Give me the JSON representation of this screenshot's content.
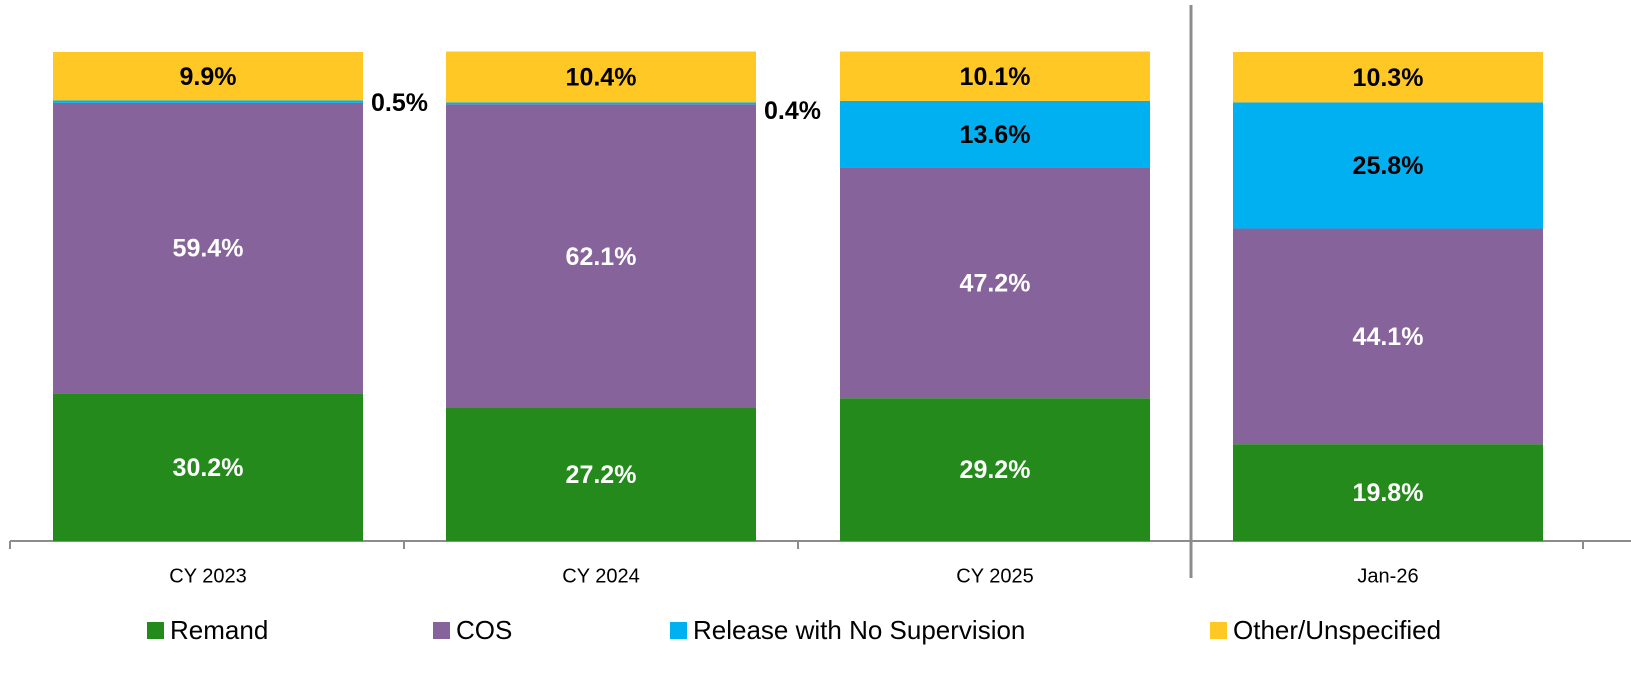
{
  "chart_data": {
    "type": "stacked_bar",
    "categories": [
      "CY 2023",
      "CY 2024",
      "CY 2025",
      "Jan-26"
    ],
    "ylim": [
      0,
      100
    ],
    "series": [
      {
        "name": "Remand",
        "color": "#248a1b",
        "label_color": "#ffffff",
        "values": [
          30.2,
          27.2,
          29.2,
          19.8
        ],
        "value_labels": [
          "30.2%",
          "27.2%",
          "29.2%",
          "19.8%"
        ]
      },
      {
        "name": "COS",
        "color": "#87639b",
        "label_color": "#ffffff",
        "values": [
          59.4,
          62.1,
          47.2,
          44.1
        ],
        "value_labels": [
          "59.4%",
          "62.1%",
          "47.2%",
          "44.1%"
        ]
      },
      {
        "name": "Release with No Supervision",
        "color": "#00b0f0",
        "label_color": "#000000",
        "values": [
          0.5,
          0.4,
          13.6,
          25.8
        ],
        "value_labels": [
          "0.5%",
          "0.4%",
          "13.6%",
          "25.8%"
        ]
      },
      {
        "name": "Other/Unspecified",
        "color": "#ffc824",
        "label_color": "#000000",
        "values": [
          9.9,
          10.4,
          10.1,
          10.3
        ],
        "value_labels": [
          "9.9%",
          "10.4%",
          "10.1%",
          "10.3%"
        ]
      }
    ]
  }
}
